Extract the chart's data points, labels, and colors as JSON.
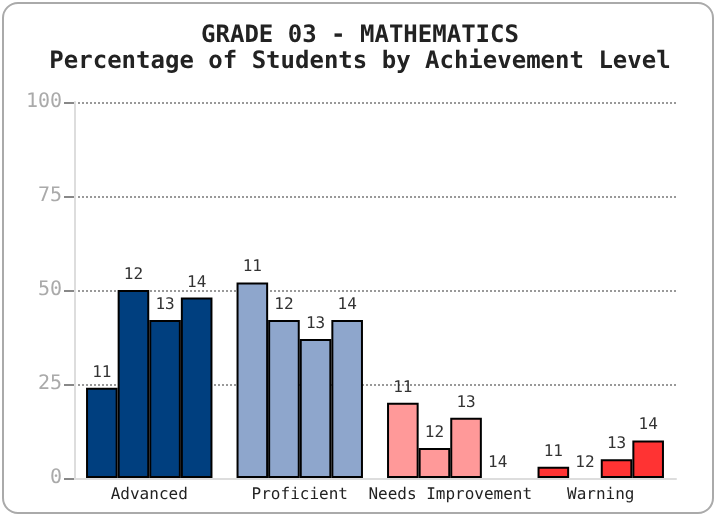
{
  "chart_data": {
    "type": "bar",
    "title": "GRADE 03 - MATHEMATICS",
    "subtitle": "Percentage of Students by Achievement Level",
    "categories": [
      "Advanced",
      "Proficient",
      "Needs Improvement",
      "Warning"
    ],
    "series": [
      {
        "name": "11",
        "colors": [
          "#003f7f",
          "#8ea6cc",
          "#ff9999",
          "#ff3333"
        ],
        "values": [
          24,
          52,
          20,
          3
        ]
      },
      {
        "name": "12",
        "colors": [
          "#003f7f",
          "#8ea6cc",
          "#ff9999",
          "#ff3333"
        ],
        "values": [
          50,
          42,
          8,
          0
        ]
      },
      {
        "name": "13",
        "colors": [
          "#003f7f",
          "#8ea6cc",
          "#ff9999",
          "#ff3333"
        ],
        "values": [
          42,
          37,
          16,
          5
        ]
      },
      {
        "name": "14",
        "colors": [
          "#003f7f",
          "#8ea6cc",
          "#ff9999",
          "#ff3333"
        ],
        "values": [
          48,
          42,
          0,
          10
        ]
      }
    ],
    "ylim": [
      0,
      100
    ],
    "yticks": [
      0,
      25,
      50,
      75,
      100
    ],
    "grid": "y",
    "legend": false
  }
}
